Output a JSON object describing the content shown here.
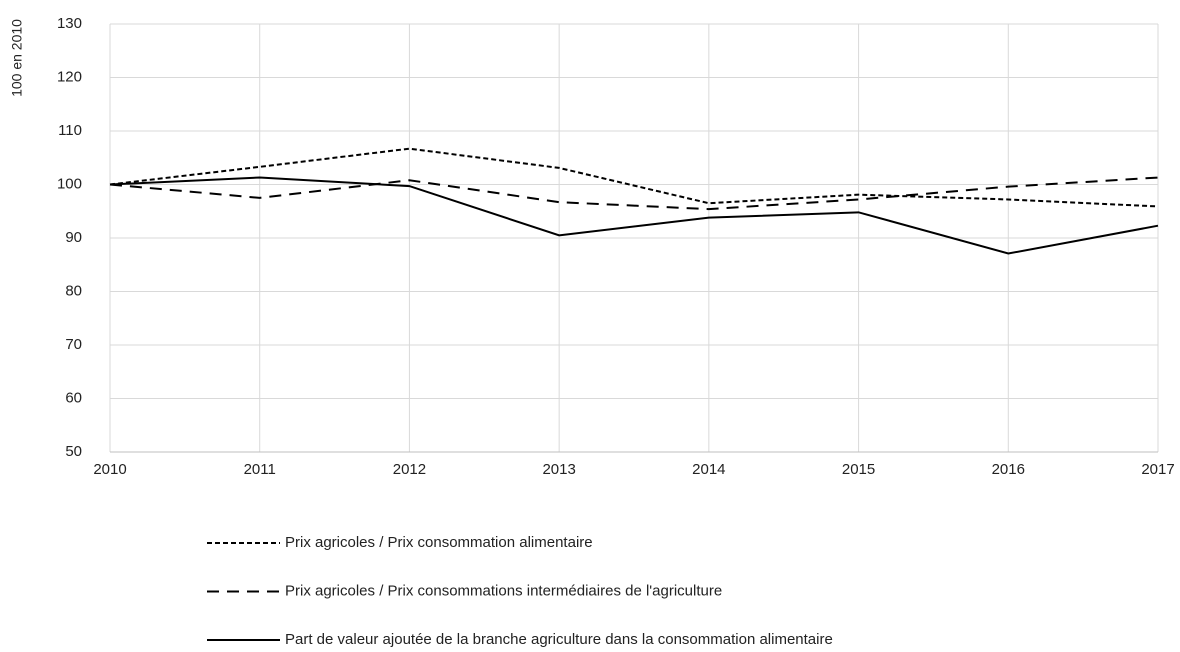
{
  "chart_data": {
    "type": "line",
    "y_label": "100 en 2010",
    "x": [
      2010,
      2011,
      2012,
      2013,
      2014,
      2015,
      2016,
      2017
    ],
    "xlim": [
      2010,
      2017
    ],
    "xticks": [
      2010,
      2011,
      2012,
      2013,
      2014,
      2015,
      2016,
      2017
    ],
    "ylim": [
      50,
      130
    ],
    "yticks": [
      50,
      60,
      70,
      80,
      90,
      100,
      110,
      120,
      130
    ],
    "grid": true,
    "legend": "bottom",
    "series": [
      {
        "name": "Prix agricoles / Prix consommation alimentaire",
        "color": "#000000",
        "line_style": "dotted",
        "values": [
          100,
          103.3,
          106.7,
          103.1,
          96.5,
          98.1,
          97.2,
          95.9
        ]
      },
      {
        "name": "Prix agricoles / Prix consommations intermédiaires de l'agriculture",
        "color": "#000000",
        "line_style": "dashed",
        "values": [
          100,
          97.5,
          100.8,
          96.7,
          95.4,
          97.2,
          99.6,
          101.3
        ]
      },
      {
        "name": "Part de valeur ajoutée de la branche agriculture dans la consommation alimentaire",
        "color": "#000000",
        "line_style": "solid",
        "values": [
          100,
          101.3,
          99.7,
          90.5,
          93.8,
          94.8,
          87.1,
          92.3
        ]
      }
    ]
  }
}
